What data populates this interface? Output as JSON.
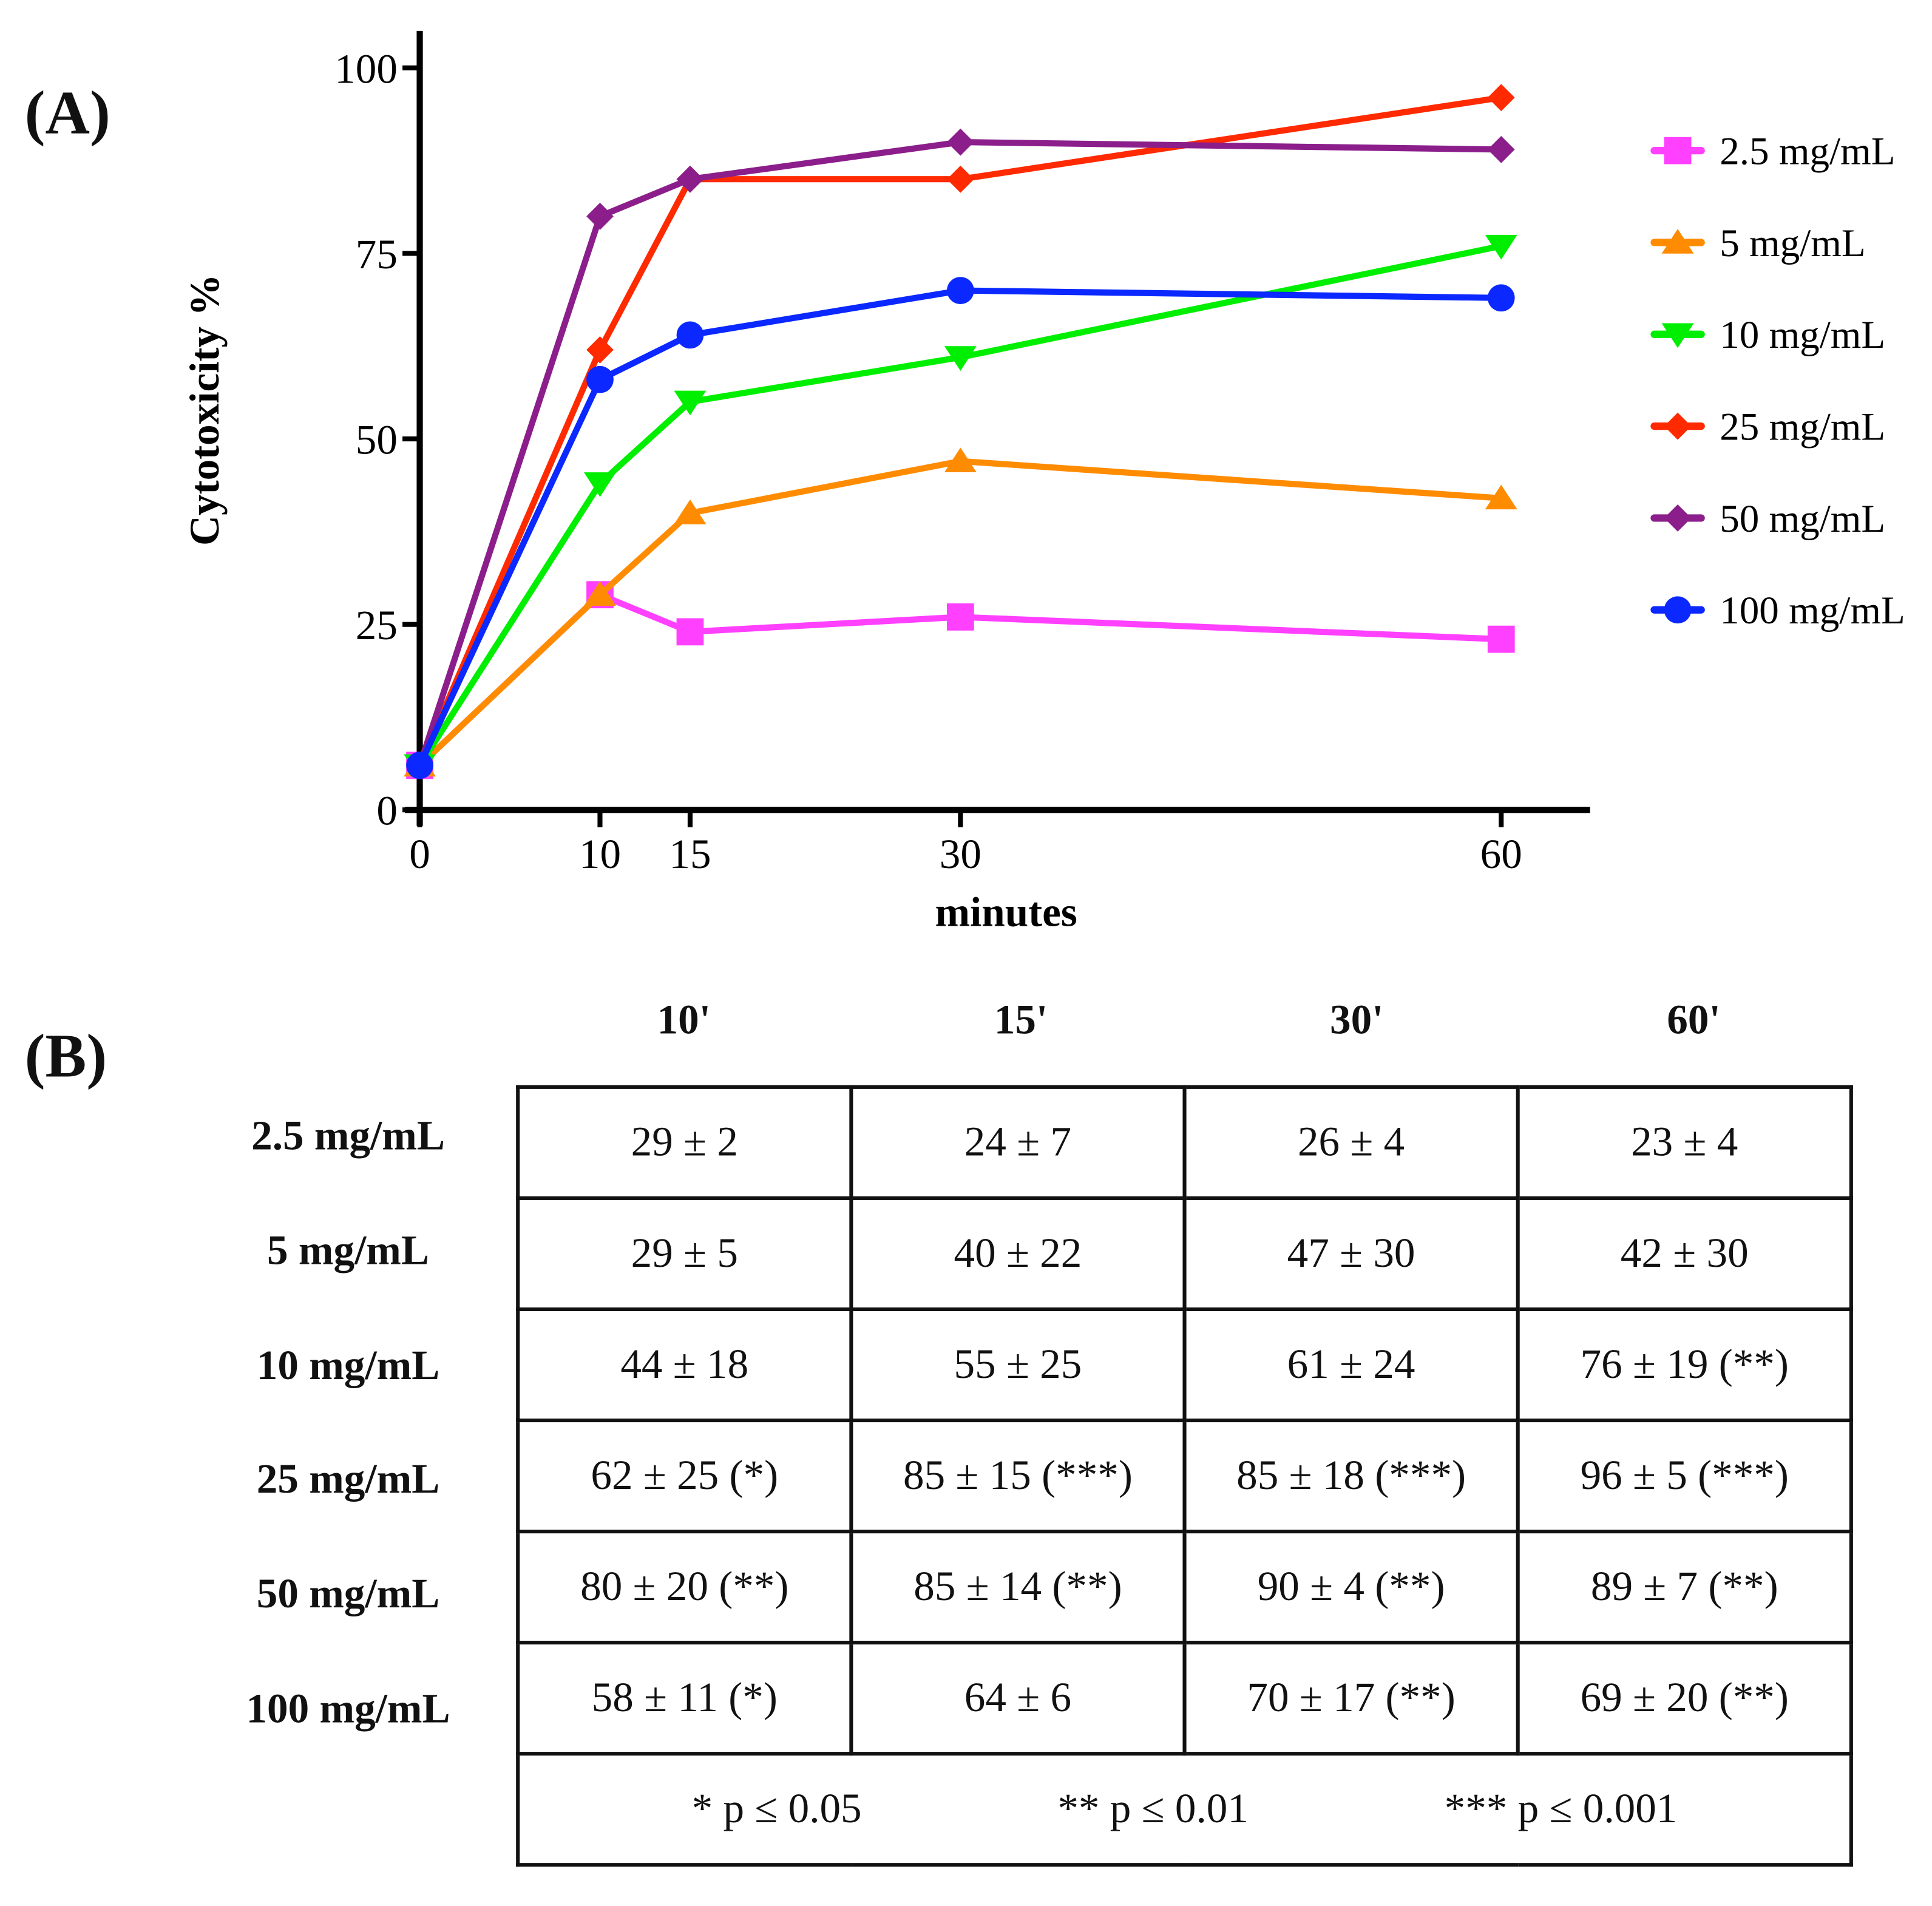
{
  "panel_a_label": "(A)",
  "panel_b_label": "(B)",
  "chart_data": {
    "type": "line",
    "xlabel": "minutes",
    "ylabel": "Cytotoxicity %",
    "x": [
      0,
      10,
      15,
      30,
      60
    ],
    "xticks": [
      "0",
      "10",
      "15",
      "30",
      "60"
    ],
    "yticks": [
      "0",
      "25",
      "50",
      "75",
      "100"
    ],
    "ylim": [
      0,
      100
    ],
    "legend_position": "right",
    "series": [
      {
        "name": "2.5 mg/mL",
        "color": "#ff40ff",
        "marker": "square",
        "values": [
          6,
          29,
          24,
          26,
          23
        ]
      },
      {
        "name": "5 mg/mL",
        "color": "#ff8c00",
        "marker": "triangle-up",
        "values": [
          6,
          29,
          40,
          47,
          42
        ]
      },
      {
        "name": "10 mg/mL",
        "color": "#00ee00",
        "marker": "triangle-down",
        "values": [
          6,
          44,
          55,
          61,
          76
        ]
      },
      {
        "name": "25 mg/mL",
        "color": "#ff2a00",
        "marker": "diamond",
        "values": [
          6,
          62,
          85,
          85,
          96
        ]
      },
      {
        "name": "50 mg/mL",
        "color": "#8b1e8b",
        "marker": "diamond",
        "values": [
          6,
          80,
          85,
          90,
          89
        ]
      },
      {
        "name": "100 mg/mL",
        "color": "#0a28ff",
        "marker": "circle",
        "values": [
          6,
          58,
          64,
          70,
          69
        ]
      }
    ]
  },
  "table": {
    "columns": [
      "10'",
      "15'",
      "30'",
      "60'"
    ],
    "rows": [
      {
        "label": "2.5 mg/mL",
        "cells": [
          "29 ± 2",
          "24 ± 7",
          "26 ± 4",
          "23 ± 4"
        ]
      },
      {
        "label": "5 mg/mL",
        "cells": [
          "29 ± 5",
          "40 ± 22",
          "47 ± 30",
          "42 ± 30"
        ]
      },
      {
        "label": "10 mg/mL",
        "cells": [
          "44 ± 18",
          "55 ± 25",
          "61 ± 24",
          "76 ± 19 (**)"
        ]
      },
      {
        "label": "25 mg/mL",
        "cells": [
          "62 ± 25 (*)",
          "85 ± 15 (***)",
          "85 ± 18 (***)",
          "96 ± 5 (***)"
        ]
      },
      {
        "label": "50 mg/mL",
        "cells": [
          "80 ± 20 (**)",
          "85 ± 14 (**)",
          "90 ± 4 (**)",
          "89 ± 7 (**)"
        ]
      },
      {
        "label": "100 mg/mL",
        "cells": [
          "58 ± 11 (*)",
          "64 ± 6",
          "70 ± 17 (**)",
          "69 ± 20 (**)"
        ]
      }
    ],
    "footnotes": [
      "* p ≤ 0.05",
      "** p ≤ 0.01",
      "*** p ≤ 0.001"
    ]
  }
}
